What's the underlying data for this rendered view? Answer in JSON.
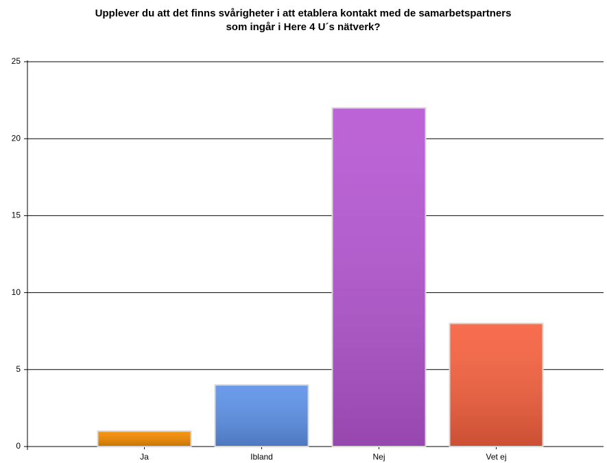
{
  "chart_data": {
    "type": "bar",
    "title": [
      "Upplever du att det finns svårigheter i att etablera kontakt med de samarbetspartners",
      "som ingår i Here 4 U´s nätverk?"
    ],
    "categories": [
      "Ja",
      "Ibland",
      "Nej",
      "Vet ej"
    ],
    "values": [
      1,
      4,
      22,
      8
    ],
    "colors": [
      "#f38b00",
      "#5e92e8",
      "#b757d4",
      "#f7613f"
    ],
    "ylim": [
      0,
      25
    ],
    "yticks": [
      0,
      5,
      10,
      15,
      20,
      25
    ],
    "grid": true
  }
}
